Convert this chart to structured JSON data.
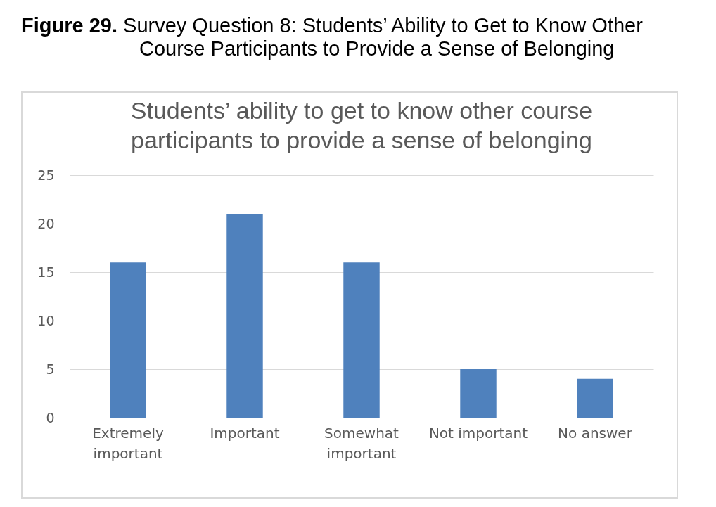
{
  "chart_data": {
    "type": "bar",
    "title": "Figure 29. Survey Question 8: Students’ Ability to Get to Know Other Course Participants to Provide a Sense of Belonging",
    "subtitle": "Students’ ability to get to know other course participants to provide a sense of belonging",
    "categories": [
      "Extremely important",
      "Important",
      "Somewhat important",
      "Not important",
      "No answer"
    ],
    "values": [
      16,
      21,
      16,
      5,
      4
    ],
    "color": "#4f81bd",
    "ylim": [
      0,
      25
    ],
    "yticks": [
      0,
      5,
      10,
      15,
      20,
      25
    ],
    "grid": "y"
  }
}
